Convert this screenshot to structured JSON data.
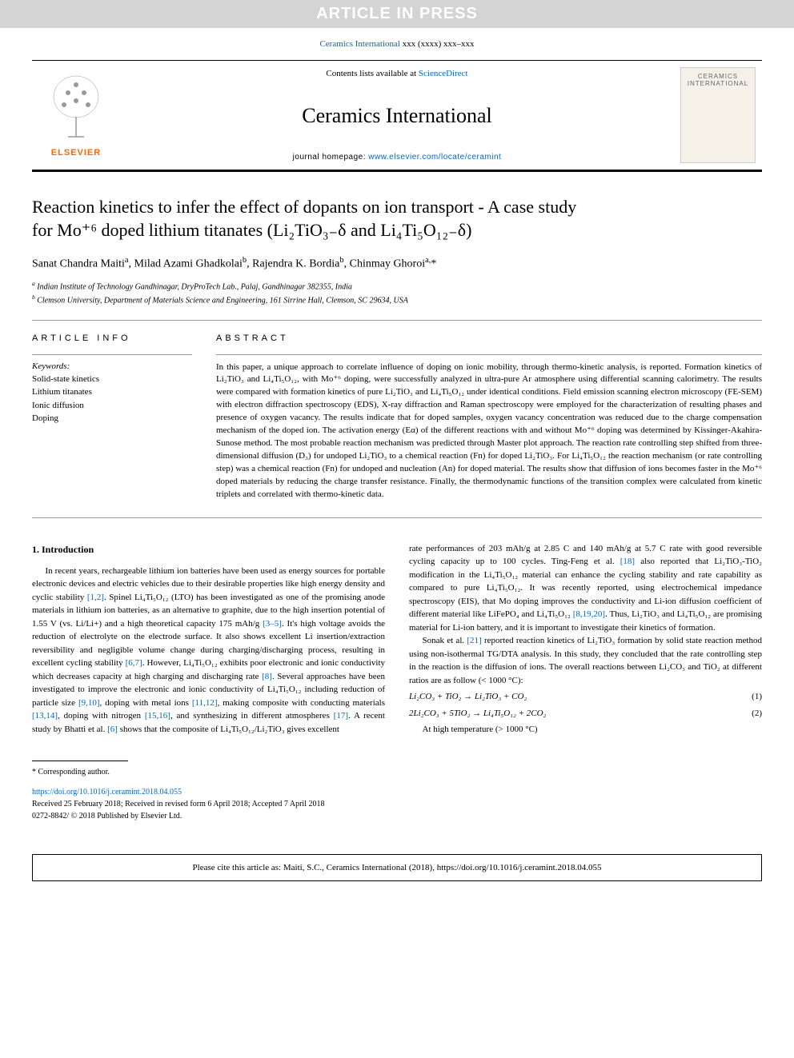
{
  "banner": "ARTICLE IN PRESS",
  "journal_ref_prefix": "Ceramics International",
  "journal_ref_suffix": " xxx (xxxx) xxx–xxx",
  "header": {
    "contents_prefix": "Contents lists available at ",
    "contents_link": "ScienceDirect",
    "journal_name": "Ceramics International",
    "homepage_prefix": "journal homepage: ",
    "homepage_link": "www.elsevier.com/locate/ceramint",
    "elsevier": "ELSEVIER",
    "cover_title": "CERAMICS",
    "cover_subtitle": "INTERNATIONAL"
  },
  "title_line1": "Reaction kinetics to infer the effect of dopants on ion transport - A case study",
  "title_line2": "for Mo⁺⁶ doped lithium titanates (Li₂TiO₃₋δ and Li₄Ti₅O₁₂₋δ)",
  "authors_html": "Sanat Chandra Maiti<sup>a</sup>, Milad Azami Ghadkolai<sup>b</sup>, Rajendra K. Bordia<sup>b</sup>, Chinmay Ghoroi<sup>a,</sup>*",
  "affiliations": {
    "a": "Indian Institute of Technology Gandhinagar, DryProTech Lab., Palaj, Gandhinagar 382355, India",
    "b": "Clemson University, Department of Materials Science and Engineering, 161 Sirrine Hall, Clemson, SC 29634, USA"
  },
  "info_label": "ARTICLE INFO",
  "abstract_label": "ABSTRACT",
  "keywords_label": "Keywords:",
  "keywords": [
    "Solid-state kinetics",
    "Lithium titanates",
    "Ionic diffusion",
    "Doping"
  ],
  "abstract": "In this paper, a unique approach to correlate influence of doping on ionic mobility, through thermo-kinetic analysis, is reported. Formation kinetics of Li₂TiO₃ and Li₄Ti₅O₁₂, with Mo⁺⁶ doping, were successfully analyzed in ultra-pure Ar atmosphere using differential scanning calorimetry. The results were compared with formation kinetics of pure Li₂TiO₃ and Li₄Ti₅O₁₂ under identical conditions. Field emission scanning electron microscopy (FE-SEM) with electron diffraction spectroscopy (EDS), X-ray diffraction and Raman spectroscopy were employed for the characterization of resulting phases and presence of oxygen vacancy. The results indicate that for doped samples, oxygen vacancy concentration was reduced due to the charge compensation mechanism of the doped ion. The activation energy (Eα) of the different reactions with and without Mo⁺⁶ doping was determined by Kissinger-Akahira-Sunose method. The most probable reaction mechanism was predicted through Master plot approach. The reaction rate controlling step shifted from three-dimensional diffusion (D₃) for undoped Li₂TiO₃ to a chemical reaction (Fn) for doped Li₂TiO₃. For Li₄Ti₅O₁₂ the reaction mechanism (or rate controlling step) was a chemical reaction (Fn) for undoped and nucleation (An) for doped material. The results show that diffusion of ions becomes faster in the Mo⁺⁶ doped materials by reducing the charge transfer resistance. Finally, the thermodynamic functions of the transition complex were calculated from kinetic triplets and correlated with thermo-kinetic data.",
  "intro_heading": "1. Introduction",
  "col_left": {
    "p1_a": "In recent years, rechargeable lithium ion batteries have been used as energy sources for portable electronic devices and electric vehicles due to their desirable properties like high energy density and cyclic stability ",
    "ref1": "[1,2]",
    "p1_b": ". Spinel Li₄Ti₅O₁₂ (LTO) has been investigated as one of the promising anode materials in lithium ion batteries, as an alternative to graphite, due to the high insertion potential of 1.55 V (vs. Li/Li+) and a high theoretical capacity 175 mAh/g ",
    "ref2": "[3–5]",
    "p1_c": ". It's high voltage avoids the reduction of electrolyte on the electrode surface. It also shows excellent Li insertion/extraction reversibility and negligible volume change during charging/discharging process, resulting in excellent cycling stability ",
    "ref3": "[6,7]",
    "p1_d": ". However, Li₄Ti₅O₁₂ exhibits poor electronic and ionic conductivity which decreases capacity at high charging and discharging rate ",
    "ref4": "[8]",
    "p1_e": ". Several approaches have been investigated to improve the electronic and ionic conductivity of Li₄Ti₅O₁₂ including reduction of particle size ",
    "ref5": "[9,10]",
    "p1_f": ", doping with metal ions ",
    "ref6": "[11,12]",
    "p1_g": ", making composite with conducting materials ",
    "ref7": "[13,14]",
    "p1_h": ", doping with nitrogen ",
    "ref8": "[15,16]",
    "p1_i": ", and synthesizing in different atmospheres ",
    "ref9": "[17]",
    "p1_j": ". A recent study by Bhatti et al. ",
    "ref10": "[6]",
    "p1_k": " shows that the composite of Li₄Ti₅O₁₂/Li₂TiO₃ gives excellent"
  },
  "col_right": {
    "p1_a": "rate performances of 203 mAh/g at 2.85 C and 140 mAh/g at 5.7 C rate with good reversible cycling capacity up to 100 cycles. Ting-Feng et al. ",
    "ref1": "[18]",
    "p1_b": " also reported that Li₂TiO₃-TiO₂ modification in the Li₄Ti₅O₁₂ material can enhance the cycling stability and rate capability as compared to pure Li₄Ti₅O₁₂. It was recently reported, using electrochemical impedance spectroscopy (EIS), that Mo doping improves the conductivity and Li-ion diffusion coefficient of different material like LiFePO₄ and Li₄Ti₅O₁₂ ",
    "ref2": "[8,19,20]",
    "p1_c": ". Thus, Li₂TiO₃ and Li₄Ti₅O₁₂ are promising material for Li-ion battery, and it is important to investigate their kinetics of formation.",
    "p2_a": "Sonak et al. ",
    "ref3": "[21]",
    "p2_b": " reported reaction kinetics of Li₂TiO₃ formation by solid state reaction method using non-isothermal TG/DTA analysis. In this study, they concluded that the rate controlling step in the reaction is the diffusion of ions. The overall reactions between Li₂CO₃ and TiO₂ at different ratios are as follow (< 1000 °C):",
    "eq1": "Li₂CO₃ + TiO₂ → Li₂TiO₃ + CO₂",
    "eq1num": "(1)",
    "eq2": "2Li₂CO₃ + 5TiO₂ → Li₄Ti₅O₁₂ + 2CO₂",
    "eq2num": "(2)",
    "p3": "At high temperature (> 1000 °C)"
  },
  "footer": {
    "corresponding": "* Corresponding author.",
    "doi": "https://doi.org/10.1016/j.ceramint.2018.04.055",
    "received": "Received 25 February 2018; Received in revised form 6 April 2018; Accepted 7 April 2018",
    "issn": "0272-8842/ © 2018 Published by Elsevier Ltd."
  },
  "cite": "Please cite this article as: Maiti, S.C., Ceramics International (2018), https://doi.org/10.1016/j.ceramint.2018.04.055",
  "colors": {
    "banner_bg": "#d4d4d4",
    "banner_fg": "#ffffff",
    "link": "#0066cc",
    "elsevier": "#ff6600",
    "text": "#000000",
    "bg": "#ffffff"
  },
  "typography": {
    "body_font": "Georgia, 'Times New Roman', serif",
    "sans_font": "Arial, sans-serif",
    "title_size_pt": 22,
    "body_size_pt": 11,
    "abstract_size_pt": 11,
    "journal_name_size_pt": 26
  }
}
